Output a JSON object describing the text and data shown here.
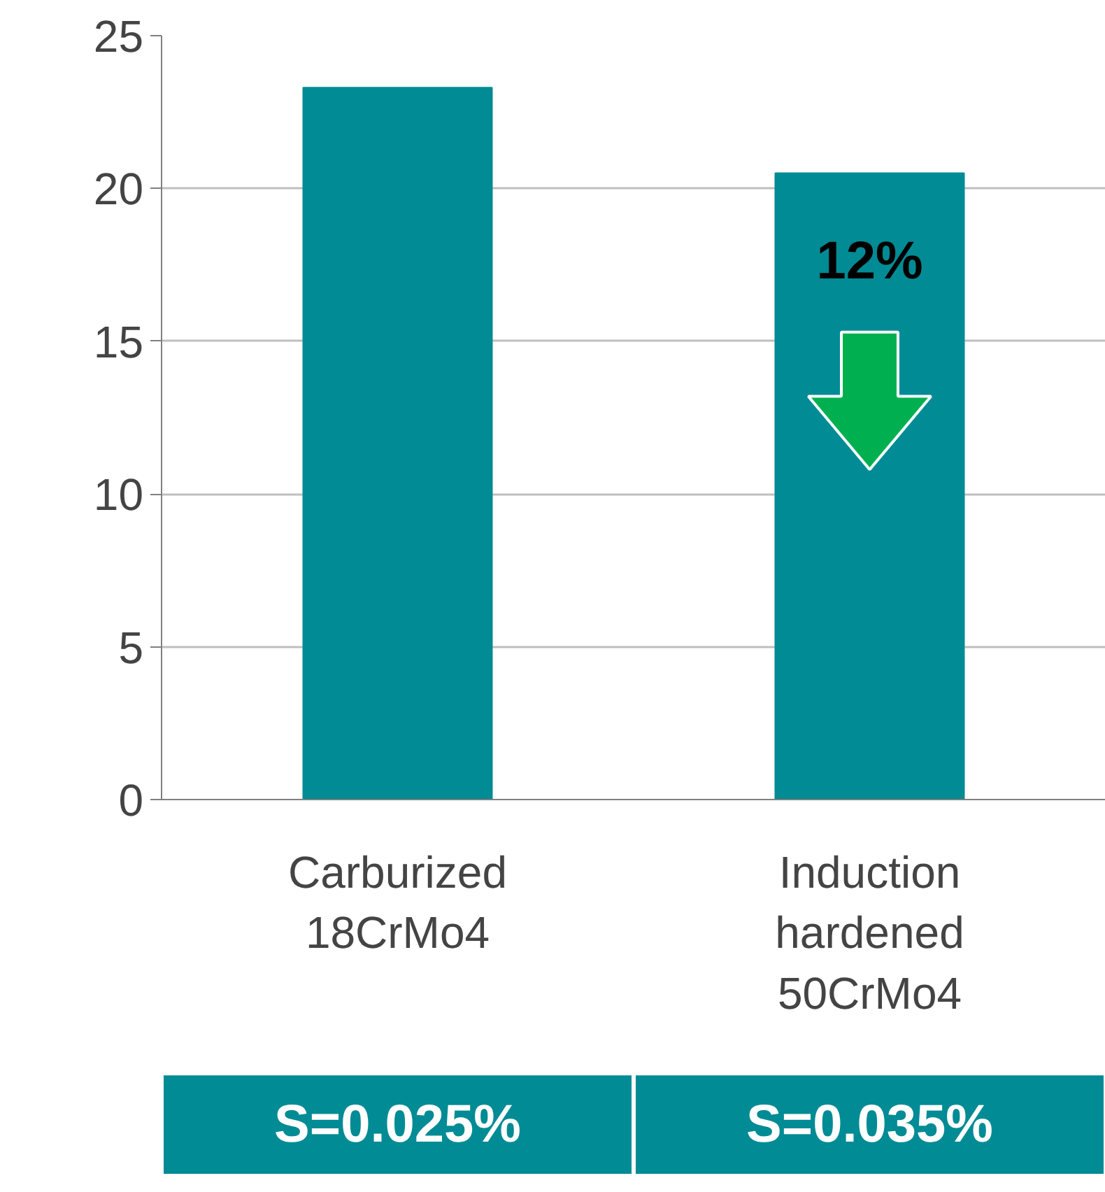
{
  "chart_data": {
    "type": "bar",
    "categories": [
      "Carburized\n18CrMo4",
      "Induction\nhardened\n50CrMo4"
    ],
    "values": [
      23.3,
      20.5
    ],
    "color": "#008b95",
    "ylim": [
      0,
      25
    ],
    "yticks": [
      0,
      5,
      10,
      15,
      20,
      25
    ],
    "grid": "y",
    "annotations": [
      "12%",
      "S=0.025%",
      "S=0.035%"
    ]
  }
}
